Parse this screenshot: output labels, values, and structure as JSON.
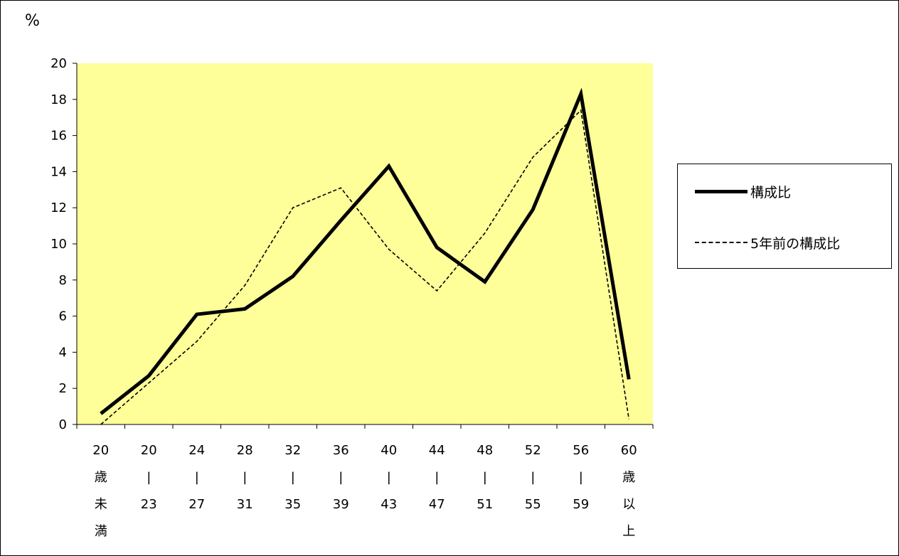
{
  "unit_label": "%",
  "colors": {
    "plot_background": "#ffff99",
    "current_line": "#000000",
    "past_line": "#000000"
  },
  "legend": {
    "current": "構成比",
    "past": "5年前の構成比",
    "placement": "right"
  },
  "chart_data": {
    "type": "line",
    "categories": [
      [
        "20",
        "歳",
        "未",
        "満"
      ],
      [
        "20",
        "|",
        "23"
      ],
      [
        "24",
        "|",
        "27"
      ],
      [
        "28",
        "|",
        "31"
      ],
      [
        "32",
        "|",
        "35"
      ],
      [
        "36",
        "|",
        "39"
      ],
      [
        "40",
        "|",
        "43"
      ],
      [
        "44",
        "|",
        "47"
      ],
      [
        "48",
        "|",
        "51"
      ],
      [
        "52",
        "|",
        "55"
      ],
      [
        "56",
        "|",
        "59"
      ],
      [
        "60",
        "歳",
        "以",
        "上"
      ]
    ],
    "series": [
      {
        "name": "構成比",
        "style": "solid",
        "values": [
          0.6,
          2.7,
          6.1,
          6.4,
          8.2,
          11.3,
          14.3,
          9.8,
          7.9,
          11.9,
          18.3,
          2.5
        ]
      },
      {
        "name": "5年前の構成比",
        "style": "dashed",
        "values": [
          0.0,
          2.3,
          4.6,
          7.7,
          12.0,
          13.1,
          9.7,
          7.4,
          10.6,
          14.8,
          17.4,
          0.3
        ]
      }
    ],
    "ylim": [
      0,
      20
    ],
    "yticks": [
      0,
      2,
      4,
      6,
      8,
      10,
      12,
      14,
      16,
      18,
      20
    ],
    "ylabel": "%",
    "xlabel": "",
    "title": "",
    "grid": false
  }
}
